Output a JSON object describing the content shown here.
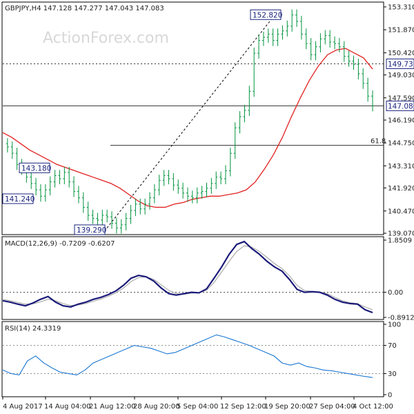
{
  "header": {
    "symbol_ohlc": "GBPJPY,H4  147.128 147.277 147.043 147.083"
  },
  "watermark": "ActionForex.com",
  "colors": {
    "candle": "#00933c",
    "ma": "#e0201e",
    "macd": "#1a1a7a",
    "signal": "#9e9e9e",
    "rsi": "#1976d2",
    "level_box": "#1a237e"
  },
  "chart_data": [
    {
      "type": "line",
      "title": "GBPJPY,H4  147.128 147.277 147.043 147.083",
      "price_axis": {
        "ylim": [
          139.07,
          153.31
        ],
        "ticks": [
          "153.310",
          "151.870",
          "150.420",
          "149.030",
          "147.590",
          "146.190",
          "144.750",
          "143.310",
          "141.920",
          "140.470",
          "139.070"
        ]
      },
      "x_ticks": [
        "4 Aug 2017",
        "14 Aug 04:00",
        "21 Aug 12:00",
        "28 Aug 20:00",
        "5 Sep 04:00",
        "12 Sep 12:00",
        "19 Sep 20:00",
        "27 Sep 04:00",
        "4 Oct 12:00"
      ],
      "price_close_series": [
        144.7,
        144.5,
        144.1,
        143.4,
        143.1,
        142.6,
        142.2,
        141.8,
        141.4,
        141.8,
        142.3,
        142.7,
        142.5,
        142.9,
        142.3,
        141.7,
        141.3,
        140.7,
        140.2,
        140.0,
        139.9,
        140.2,
        140.1,
        139.7,
        139.4,
        139.6,
        140.0,
        140.5,
        140.9,
        140.6,
        140.9,
        141.3,
        141.8,
        142.4,
        142.7,
        142.5,
        142.1,
        141.9,
        141.6,
        141.4,
        141.3,
        141.6,
        141.7,
        141.9,
        142.2,
        142.6,
        142.5,
        143.0,
        144.1,
        145.7,
        146.4,
        146.8,
        148.0,
        150.4,
        151.2,
        151.4,
        151.6,
        151.2,
        151.6,
        151.8,
        152.1,
        152.8,
        152.4,
        151.6,
        151.0,
        150.3,
        150.8,
        151.3,
        151.5,
        151.1,
        151.0,
        150.8,
        150.2,
        149.9,
        149.7,
        149.1,
        148.5,
        147.7,
        147.083
      ],
      "ma_series": [
        145.4,
        145.1,
        144.7,
        144.3,
        144.0,
        143.7,
        143.4,
        143.2,
        143.0,
        142.8,
        142.6,
        142.4,
        142.2,
        141.9,
        141.5,
        141.1,
        140.8,
        140.7,
        140.7,
        140.9,
        141.0,
        141.2,
        141.3,
        141.4,
        141.4,
        141.5,
        141.6,
        141.8,
        142.3,
        143.1,
        144.0,
        145.1,
        146.4,
        147.6,
        148.7,
        149.6,
        150.3,
        150.6,
        150.7,
        150.4,
        150.1,
        149.4
      ],
      "horizontal_levels": [
        {
          "label": "149.730",
          "value": 149.73,
          "style": "dotted"
        },
        {
          "label": "147.083",
          "value": 147.083,
          "style": "solid"
        },
        {
          "label": "61.8",
          "value": 144.6,
          "style": "solid"
        }
      ],
      "price_labels": [
        {
          "text": "152.820",
          "value": 152.82
        },
        {
          "text": "143.180",
          "value": 143.18
        },
        {
          "text": "141.240",
          "value": 141.24
        },
        {
          "text": "139.290",
          "value": 139.29
        }
      ]
    },
    {
      "type": "line",
      "title": "MACD(12,26,9) -0.7209 -0.6207",
      "ylim": [
        -0.8912,
        1.8509
      ],
      "ticks": [
        "1.8509",
        "0.00",
        "-0.8912"
      ],
      "series": [
        {
          "values": [
            -0.3,
            -0.35,
            -0.42,
            -0.48,
            -0.38,
            -0.25,
            -0.15,
            -0.35,
            -0.48,
            -0.52,
            -0.42,
            -0.35,
            -0.25,
            -0.18,
            -0.08,
            0.05,
            0.25,
            0.5,
            0.6,
            0.55,
            0.4,
            0.15,
            -0.05,
            -0.1,
            -0.05,
            0.0,
            -0.02,
            0.12,
            0.5,
            0.9,
            1.35,
            1.7,
            1.8,
            1.55,
            1.35,
            1.1,
            0.9,
            0.75,
            0.45,
            0.1,
            0.0,
            0.02,
            0.0,
            -0.1,
            -0.25,
            -0.35,
            -0.4,
            -0.42,
            -0.62,
            -0.72
          ]
        },
        {
          "values": [
            -0.25,
            -0.3,
            -0.36,
            -0.42,
            -0.41,
            -0.34,
            -0.25,
            -0.3,
            -0.4,
            -0.47,
            -0.45,
            -0.4,
            -0.32,
            -0.24,
            -0.14,
            -0.02,
            0.15,
            0.38,
            0.52,
            0.55,
            0.46,
            0.26,
            0.07,
            -0.05,
            -0.07,
            -0.03,
            -0.02,
            0.07,
            0.35,
            0.72,
            1.1,
            1.45,
            1.65,
            1.6,
            1.45,
            1.24,
            1.02,
            0.84,
            0.58,
            0.24,
            0.06,
            0.03,
            0.01,
            -0.05,
            -0.18,
            -0.3,
            -0.37,
            -0.4,
            -0.52,
            -0.62
          ]
        }
      ]
    },
    {
      "type": "line",
      "title": "RSI(14) 24.3319",
      "ylim": [
        0,
        100
      ],
      "ticks": [
        "100",
        "70",
        "30",
        "0"
      ],
      "values": [
        35,
        30,
        28,
        48,
        55,
        45,
        38,
        32,
        30,
        28,
        35,
        45,
        50,
        55,
        60,
        65,
        70,
        68,
        66,
        62,
        58,
        60,
        65,
        70,
        75,
        80,
        85,
        82,
        78,
        74,
        70,
        65,
        60,
        55,
        45,
        42,
        45,
        40,
        38,
        35,
        34,
        32,
        30,
        28,
        26,
        24.3319
      ]
    }
  ]
}
